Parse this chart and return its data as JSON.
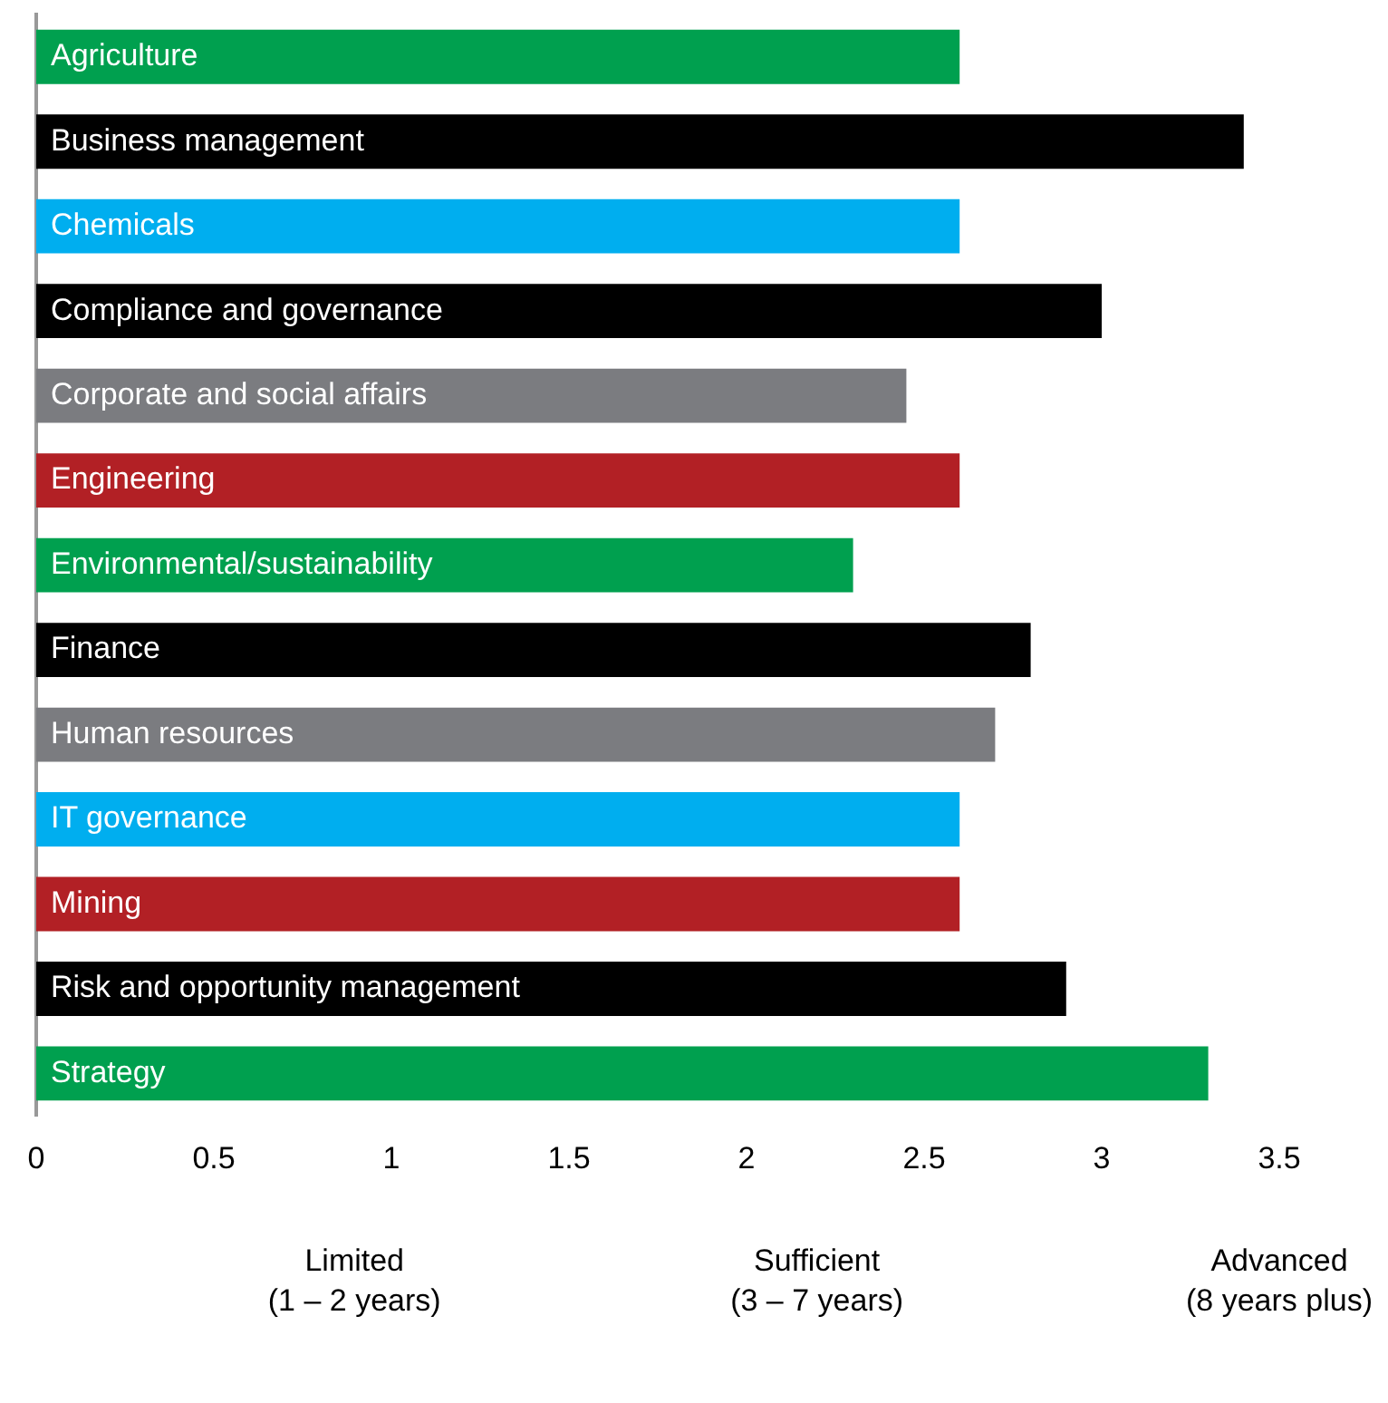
{
  "chart_data": {
    "type": "bar",
    "orientation": "horizontal",
    "categories": [
      "Agriculture",
      "Business management",
      "Chemicals",
      "Compliance and governance",
      "Corporate and social affairs",
      "Engineering",
      "Environmental/sustainability",
      "Finance",
      "Human resources",
      "IT governance",
      "Mining",
      "Risk and opportunity management",
      "Strategy"
    ],
    "values": [
      2.6,
      3.4,
      2.6,
      3.0,
      2.45,
      2.6,
      2.3,
      2.8,
      2.7,
      2.6,
      2.6,
      2.9,
      3.3
    ],
    "colors": [
      "#00a04f",
      "#000000",
      "#00aeef",
      "#000000",
      "#7b7c80",
      "#b22025",
      "#00a04f",
      "#000000",
      "#7b7c80",
      "#00aeef",
      "#b22025",
      "#000000",
      "#00a04f"
    ],
    "xlim": [
      0,
      3.5
    ],
    "xticks": [
      0,
      0.5,
      1,
      1.5,
      2,
      2.5,
      3,
      3.5
    ],
    "grid": false,
    "legend": false,
    "annotations": [
      "Limited\n(1 – 2 years)",
      "Sufficient\n(3 – 7 years)",
      "Advanced\n(8 years plus)"
    ]
  }
}
